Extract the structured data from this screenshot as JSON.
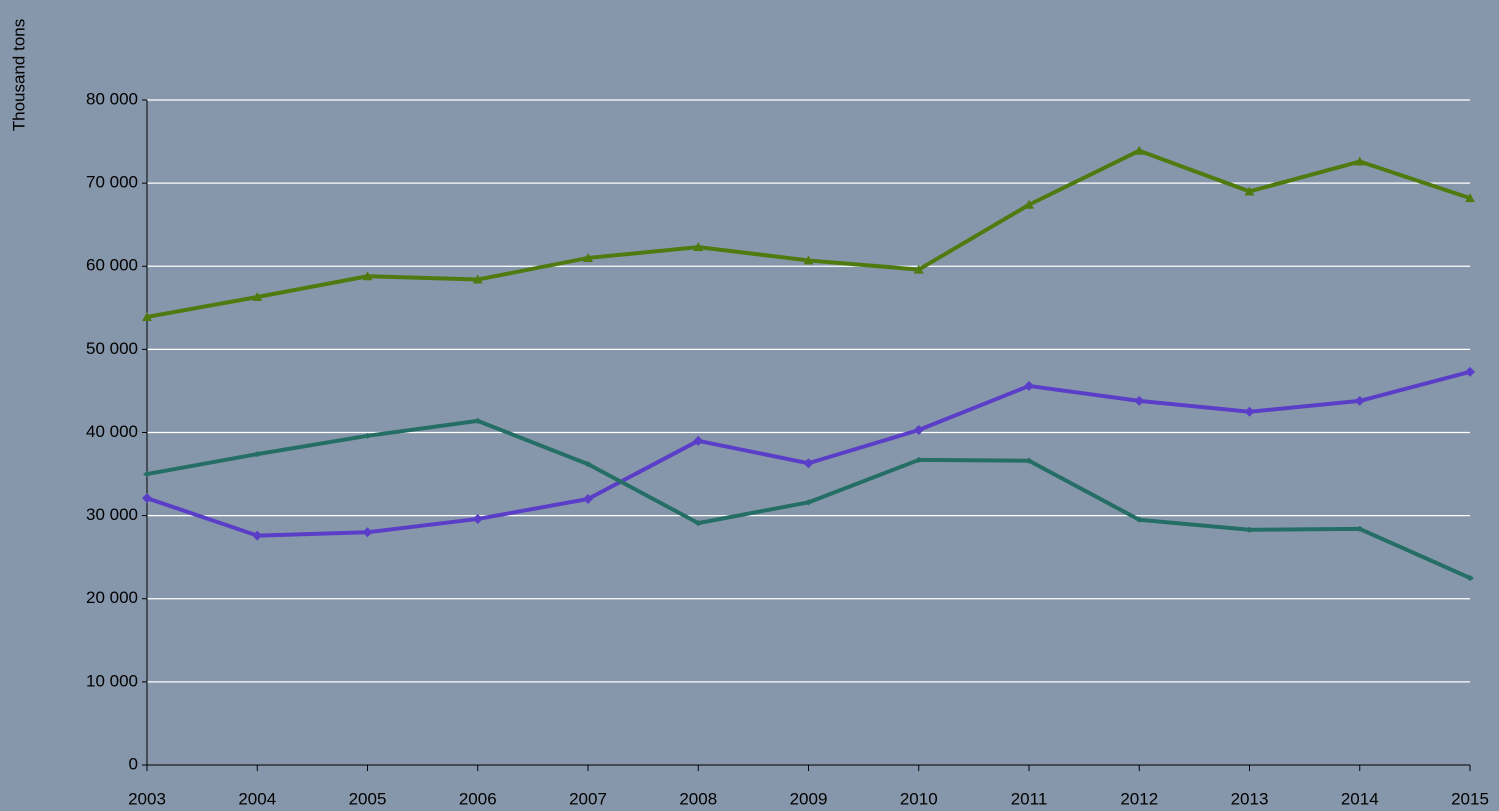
{
  "chart_data": {
    "type": "line",
    "y_label": "Thousand tons",
    "categories": [
      "2003",
      "2004",
      "2005",
      "2006",
      "2007",
      "2008",
      "2009",
      "2010",
      "2011",
      "2012",
      "2013",
      "2014",
      "2015"
    ],
    "series": [
      {
        "color": "#4f7a0f",
        "marker": "triangle",
        "values": [
          53900,
          56300,
          58800,
          58400,
          61000,
          62300,
          60700,
          59600,
          67400,
          73900,
          69000,
          72600,
          68200
        ]
      },
      {
        "color": "#5b3ec8",
        "marker": "diamond",
        "values": [
          32100,
          27600,
          28000,
          29600,
          32000,
          39000,
          36300,
          40300,
          45600,
          43800,
          42500,
          43800,
          47300
        ]
      },
      {
        "color": "#256e66",
        "marker": "dash",
        "values": [
          35000,
          37400,
          39600,
          41400,
          36200,
          29100,
          31600,
          36700,
          36600,
          29500,
          28300,
          28400,
          22500
        ]
      }
    ],
    "ylim": [
      0,
      80000
    ],
    "yticks": [
      0,
      {
        "value": 10000,
        "label": "10 000"
      },
      {
        "value": 20000,
        "label": "20 000"
      },
      {
        "value": 30000,
        "label": "30 000"
      },
      {
        "value": 40000,
        "label": "40 000"
      },
      {
        "value": 50000,
        "label": "50 000"
      },
      {
        "value": 60000,
        "label": "60 000"
      },
      {
        "value": 70000,
        "label": "70 000"
      },
      {
        "value": 80000,
        "label": "80 000"
      }
    ],
    "grid": true
  }
}
